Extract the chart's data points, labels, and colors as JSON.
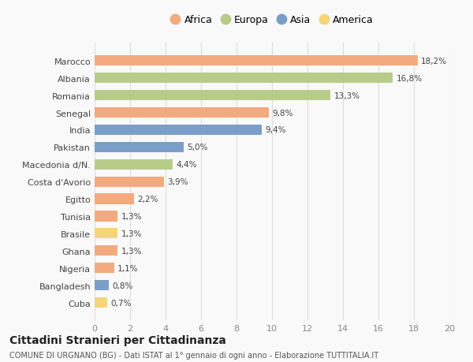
{
  "countries": [
    "Marocco",
    "Albania",
    "Romania",
    "Senegal",
    "India",
    "Pakistan",
    "Macedonia d/N.",
    "Costa d'Avorio",
    "Egitto",
    "Tunisia",
    "Brasile",
    "Ghana",
    "Nigeria",
    "Bangladesh",
    "Cuba"
  ],
  "values": [
    18.2,
    16.8,
    13.3,
    9.8,
    9.4,
    5.0,
    4.4,
    3.9,
    2.2,
    1.3,
    1.3,
    1.3,
    1.1,
    0.8,
    0.7
  ],
  "labels": [
    "18,2%",
    "16,8%",
    "13,3%",
    "9,8%",
    "9,4%",
    "5,0%",
    "4,4%",
    "3,9%",
    "2,2%",
    "1,3%",
    "1,3%",
    "1,3%",
    "1,1%",
    "0,8%",
    "0,7%"
  ],
  "continents": [
    "Africa",
    "Europa",
    "Europa",
    "Africa",
    "Asia",
    "Asia",
    "Europa",
    "Africa",
    "Africa",
    "Africa",
    "America",
    "Africa",
    "Africa",
    "Asia",
    "America"
  ],
  "colors": {
    "Africa": "#F2AA7E",
    "Europa": "#B8CC8A",
    "Asia": "#7B9EC9",
    "America": "#F5D47A"
  },
  "xlim": [
    0,
    20
  ],
  "xticks": [
    0,
    2,
    4,
    6,
    8,
    10,
    12,
    14,
    16,
    18,
    20
  ],
  "title": "Cittadini Stranieri per Cittadinanza",
  "subtitle": "COMUNE DI URGNANO (BG) - Dati ISTAT al 1° gennaio di ogni anno - Elaborazione TUTTITALIA.IT",
  "background_color": "#f9f9f9",
  "bar_height": 0.6,
  "grid_color": "#dddddd",
  "legend_order": [
    "Africa",
    "Europa",
    "Asia",
    "America"
  ]
}
